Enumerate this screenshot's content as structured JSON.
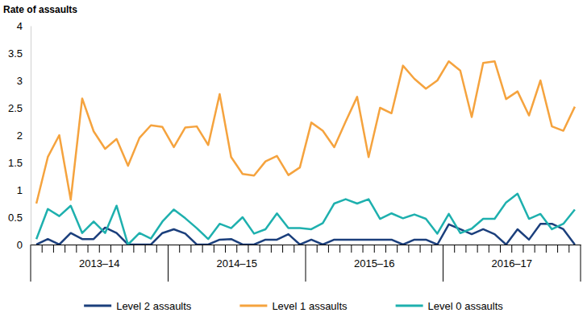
{
  "chart_data": {
    "type": "line",
    "y_label": "Rate of assaults",
    "categories": [
      null,
      null,
      null,
      null,
      null,
      null,
      null,
      null,
      null,
      null,
      null,
      null,
      null,
      null,
      null,
      null,
      null,
      null,
      null,
      null,
      null,
      null,
      null,
      null,
      null,
      null,
      null,
      null,
      null,
      null,
      null,
      null,
      null,
      null,
      null,
      null,
      null,
      null,
      null,
      null,
      null,
      null,
      null,
      null,
      null,
      null,
      null,
      null
    ],
    "groups": [
      "2013–14",
      "2014–15",
      "2015–16",
      "2016–17"
    ],
    "ylim": [
      0,
      4
    ],
    "yticks": [
      0,
      0.5,
      1,
      1.5,
      2,
      2.5,
      3,
      3.5,
      4
    ],
    "grid": false,
    "legend": "bottom",
    "series": [
      {
        "name": "Level 2 assaults",
        "color": "#1b3f7c",
        "values": [
          0,
          0.1,
          0,
          0.21,
          0.1,
          0.1,
          0.31,
          0.21,
          0,
          0,
          0,
          0.21,
          0.28,
          0.2,
          0,
          0,
          0.09,
          0.1,
          0,
          0,
          0.09,
          0.09,
          0.19,
          0,
          0.09,
          0,
          0.09,
          0.09,
          0.09,
          0.09,
          0.09,
          0.09,
          0,
          0.09,
          0.09,
          0,
          0.37,
          0.28,
          0.19,
          0.28,
          0.19,
          0,
          0.28,
          0.09,
          0.38,
          0.38,
          0.28,
          0
        ]
      },
      {
        "name": "Level 1 assaults",
        "color": "#f5a33e",
        "values": [
          0.75,
          1.6,
          2.0,
          0.82,
          2.67,
          2.07,
          1.75,
          1.93,
          1.44,
          1.95,
          2.18,
          2.15,
          1.78,
          2.14,
          2.16,
          1.82,
          2.75,
          1.6,
          1.29,
          1.26,
          1.52,
          1.62,
          1.27,
          1.41,
          2.23,
          2.08,
          1.78,
          2.25,
          2.7,
          1.6,
          2.5,
          2.4,
          3.27,
          3.03,
          2.85,
          3.0,
          3.35,
          3.18,
          2.33,
          3.32,
          3.35,
          2.66,
          2.8,
          2.36,
          3.0,
          2.16,
          2.08,
          2.52
        ]
      },
      {
        "name": "Level 0 assaults",
        "color": "#1eb0ae",
        "values": [
          0.1,
          0.65,
          0.52,
          0.71,
          0.21,
          0.42,
          0.21,
          0.71,
          0,
          0.21,
          0.11,
          0.42,
          0.64,
          0.48,
          0.3,
          0.1,
          0.38,
          0.3,
          0.5,
          0.2,
          0.28,
          0.57,
          0.3,
          0.3,
          0.28,
          0.39,
          0.75,
          0.83,
          0.75,
          0.83,
          0.47,
          0.57,
          0.48,
          0.55,
          0.47,
          0.2,
          0.56,
          0.21,
          0.29,
          0.47,
          0.47,
          0.77,
          0.93,
          0.47,
          0.56,
          0.28,
          0.38,
          0.64
        ]
      }
    ]
  }
}
